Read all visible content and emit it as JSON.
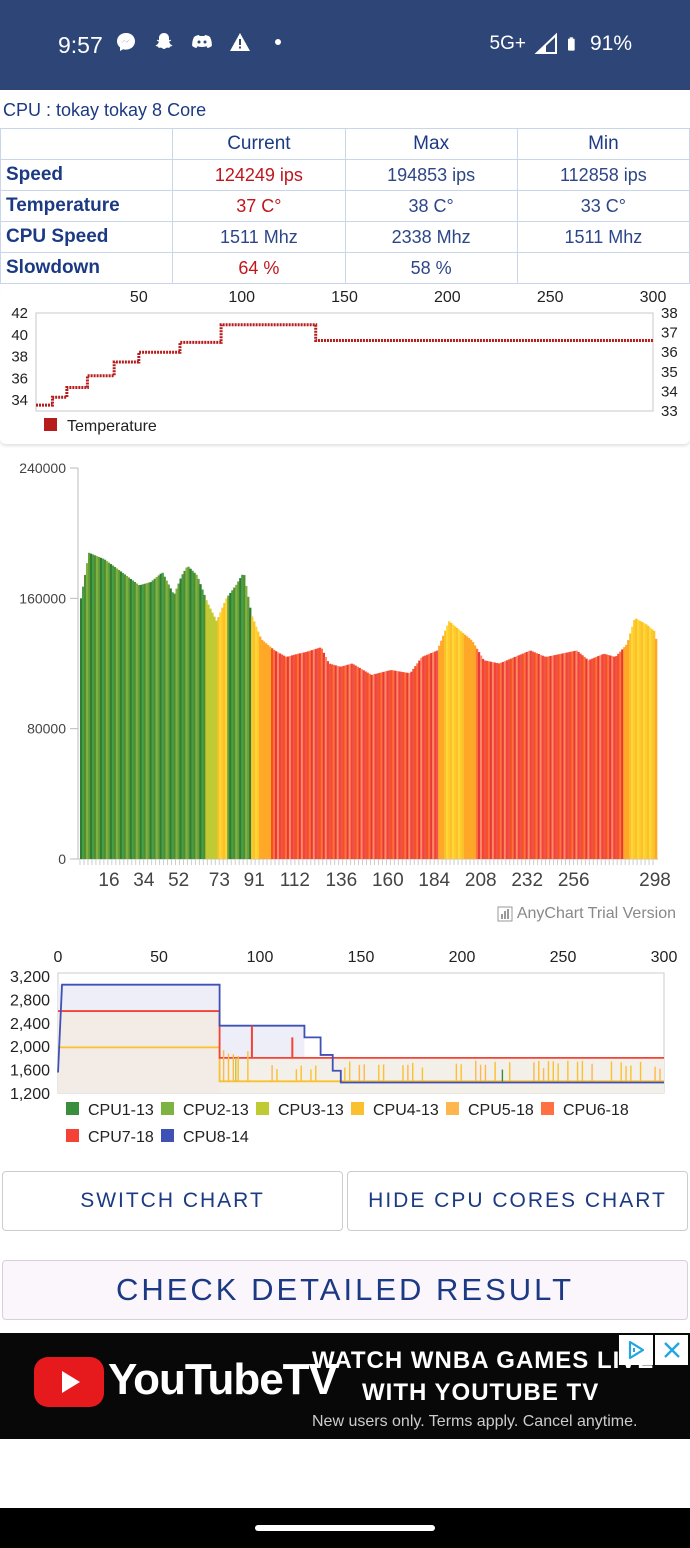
{
  "status_bar": {
    "time": "9:57",
    "left_icons": [
      "messenger-icon",
      "snapchat-icon",
      "discord-icon",
      "warning-icon",
      "dot-icon"
    ],
    "network": "5G+",
    "battery": "91%"
  },
  "cpu": {
    "title": "CPU : tokay tokay 8 Core"
  },
  "stats": {
    "headers": [
      "",
      "Current",
      "Max",
      "Min"
    ],
    "rows": [
      {
        "label": "Speed",
        "current": "124249 ips",
        "max": "194853 ips",
        "min": "112858 ips"
      },
      {
        "label": "Temperature",
        "current": "37 C°",
        "max": "38 C°",
        "min": "33 C°"
      },
      {
        "label": "CPU Speed",
        "current": "1511 Mhz",
        "max": "2338 Mhz",
        "min": "1511 Mhz"
      },
      {
        "label": "Slowdown",
        "current": "64 %",
        "max": "58 %",
        "min": ""
      }
    ]
  },
  "chart_data": [
    {
      "type": "line",
      "name": "temperature-chart",
      "x_ticks": [
        "50",
        "100",
        "150",
        "200",
        "250",
        "300"
      ],
      "xlim": [
        0,
        300
      ],
      "y_left_ticks": [
        "34",
        "36",
        "38",
        "40",
        "42"
      ],
      "ylim_left": [
        33,
        42
      ],
      "y_right_ticks": [
        "33",
        "34",
        "35",
        "36",
        "37",
        "38"
      ],
      "ylim_right": [
        33,
        38
      ],
      "legend": [
        "Temperature"
      ],
      "color": "#b71c1c",
      "series": [
        {
          "name": "Temperature",
          "steps": [
            [
              0,
              33.3
            ],
            [
              8,
              33.7
            ],
            [
              15,
              34.2
            ],
            [
              25,
              34.8
            ],
            [
              38,
              35.5
            ],
            [
              50,
              36.0
            ],
            [
              70,
              36.5
            ],
            [
              90,
              37.4
            ],
            [
              136,
              36.6
            ],
            [
              300,
              36.6
            ]
          ]
        }
      ]
    },
    {
      "type": "bar",
      "name": "speed-chart",
      "y_ticks": [
        "0",
        "80000",
        "160000",
        "240000"
      ],
      "ylim": [
        0,
        240000
      ],
      "x_ticks": [
        "16",
        "34",
        "52",
        "73",
        "91",
        "112",
        "136",
        "160",
        "184",
        "208",
        "232",
        "256",
        "298"
      ],
      "xlim": [
        0,
        298
      ],
      "watermark": "AnyChart Trial Version",
      "profile": [
        [
          0,
          160000
        ],
        [
          4,
          188000
        ],
        [
          12,
          184000
        ],
        [
          20,
          177000
        ],
        [
          30,
          168000
        ],
        [
          36,
          170000
        ],
        [
          42,
          176000
        ],
        [
          48,
          162000
        ],
        [
          52,
          174000
        ],
        [
          55,
          180000
        ],
        [
          60,
          174000
        ],
        [
          65,
          158000
        ],
        [
          70,
          146000
        ],
        [
          75,
          160000
        ],
        [
          80,
          168000
        ],
        [
          84,
          176000
        ],
        [
          88,
          150000
        ],
        [
          93,
          135000
        ],
        [
          100,
          128000
        ],
        [
          106,
          124000
        ],
        [
          112,
          126000
        ],
        [
          116,
          127000
        ],
        [
          124,
          130000
        ],
        [
          128,
          120000
        ],
        [
          134,
          118000
        ],
        [
          140,
          120000
        ],
        [
          150,
          113000
        ],
        [
          160,
          116000
        ],
        [
          170,
          114000
        ],
        [
          176,
          124000
        ],
        [
          184,
          128000
        ],
        [
          190,
          146000
        ],
        [
          196,
          140000
        ],
        [
          202,
          134000
        ],
        [
          208,
          122000
        ],
        [
          216,
          120000
        ],
        [
          224,
          124000
        ],
        [
          232,
          128000
        ],
        [
          240,
          124000
        ],
        [
          248,
          126000
        ],
        [
          256,
          128000
        ],
        [
          262,
          122000
        ],
        [
          270,
          126000
        ],
        [
          276,
          124000
        ],
        [
          282,
          132000
        ],
        [
          286,
          148000
        ],
        [
          292,
          144000
        ],
        [
          296,
          140000
        ],
        [
          298,
          130000
        ]
      ]
    },
    {
      "type": "line",
      "name": "cpu-cores-chart",
      "x_ticks": [
        "0",
        "50",
        "100",
        "150",
        "200",
        "250",
        "300"
      ],
      "xlim": [
        0,
        300
      ],
      "y_ticks": [
        "1,200",
        "1,600",
        "2,000",
        "2,400",
        "2,800",
        "3,200"
      ],
      "ylim": [
        1200,
        3250
      ],
      "series": [
        {
          "name": "CPU1-13",
          "color": "#388e3c"
        },
        {
          "name": "CPU2-13",
          "color": "#7cb342"
        },
        {
          "name": "CPU3-13",
          "color": "#c0ca33"
        },
        {
          "name": "CPU4-13",
          "color": "#fbc02d"
        },
        {
          "name": "CPU5-18",
          "color": "#ffb74d"
        },
        {
          "name": "CPU6-18",
          "color": "#ff7043"
        },
        {
          "name": "CPU7-18",
          "color": "#f44336"
        },
        {
          "name": "CPU8-14",
          "color": "#3f51b5"
        }
      ],
      "lines": {
        "cpu8": [
          [
            0,
            1550
          ],
          [
            2,
            3050
          ],
          [
            80,
            3050
          ],
          [
            80,
            2350
          ],
          [
            122,
            2350
          ],
          [
            122,
            2150
          ],
          [
            130,
            2150
          ],
          [
            130,
            1850
          ],
          [
            136,
            1850
          ],
          [
            136,
            1580
          ],
          [
            140,
            1580
          ],
          [
            140,
            1380
          ],
          [
            300,
            1380
          ]
        ],
        "cpu7": [
          [
            0,
            2600
          ],
          [
            80,
            2600
          ],
          [
            80,
            1800
          ],
          [
            300,
            1800
          ]
        ],
        "cpu4": [
          [
            0,
            1980
          ],
          [
            80,
            1980
          ],
          [
            80,
            1400
          ],
          [
            300,
            1400
          ]
        ]
      }
    }
  ],
  "buttons": {
    "switch_chart": "SWITCH CHART",
    "hide_cores": "HIDE CPU CORES CHART",
    "check_detailed": "CHECK DETAILED RESULT"
  },
  "ad": {
    "brand": "YouTubeTV",
    "headline_1": "WATCH WNBA GAMES LIVE",
    "headline_2": "WITH YOUTUBE TV",
    "disclaimer": "New users only. Terms apply. Cancel anytime."
  }
}
